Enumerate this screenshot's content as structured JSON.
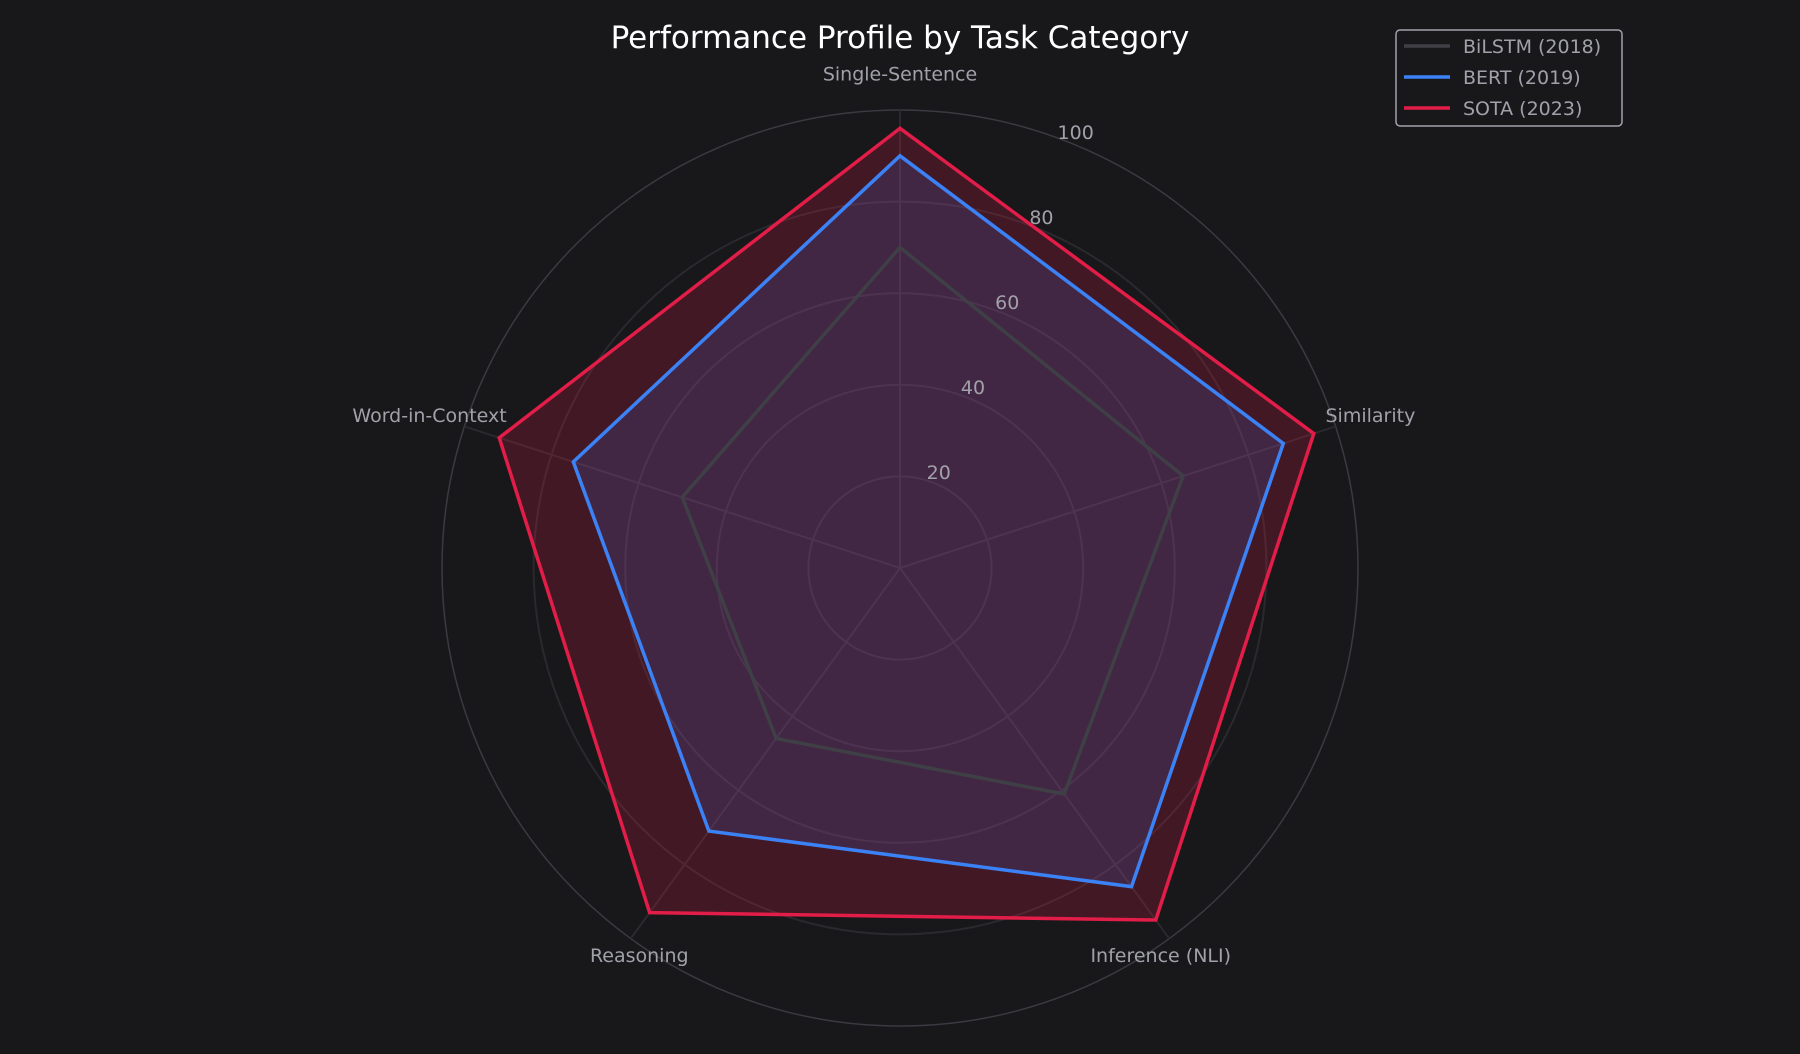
{
  "chart_data": {
    "type": "radar",
    "title": "Performance Profile by Task Category",
    "categories": [
      "Single-Sentence",
      "Similarity",
      "Inference (NLI)",
      "Reasoning",
      "Word-in-Context"
    ],
    "rlim": [
      0,
      100
    ],
    "rticks": [
      20,
      40,
      60,
      80,
      100
    ],
    "grid": true,
    "legend_position": "top-right",
    "series": [
      {
        "name": "BiLSTM (2018)",
        "values": [
          70,
          65,
          61,
          46,
          50
        ],
        "color": "#3f3f46",
        "filled": false
      },
      {
        "name": "BERT (2019)",
        "values": [
          90,
          88,
          86,
          71,
          75
        ],
        "color": "#3b82f6",
        "fill": "#3b82f6"
      },
      {
        "name": "SOTA (2023)",
        "values": [
          96,
          95,
          95,
          93,
          92
        ],
        "color": "#e11d48",
        "fill": "#e11d48"
      }
    ],
    "colors": {
      "background": "#18181b",
      "grid": "#2e2e33",
      "text": "#a1a1aa",
      "title": "#ffffff"
    }
  }
}
